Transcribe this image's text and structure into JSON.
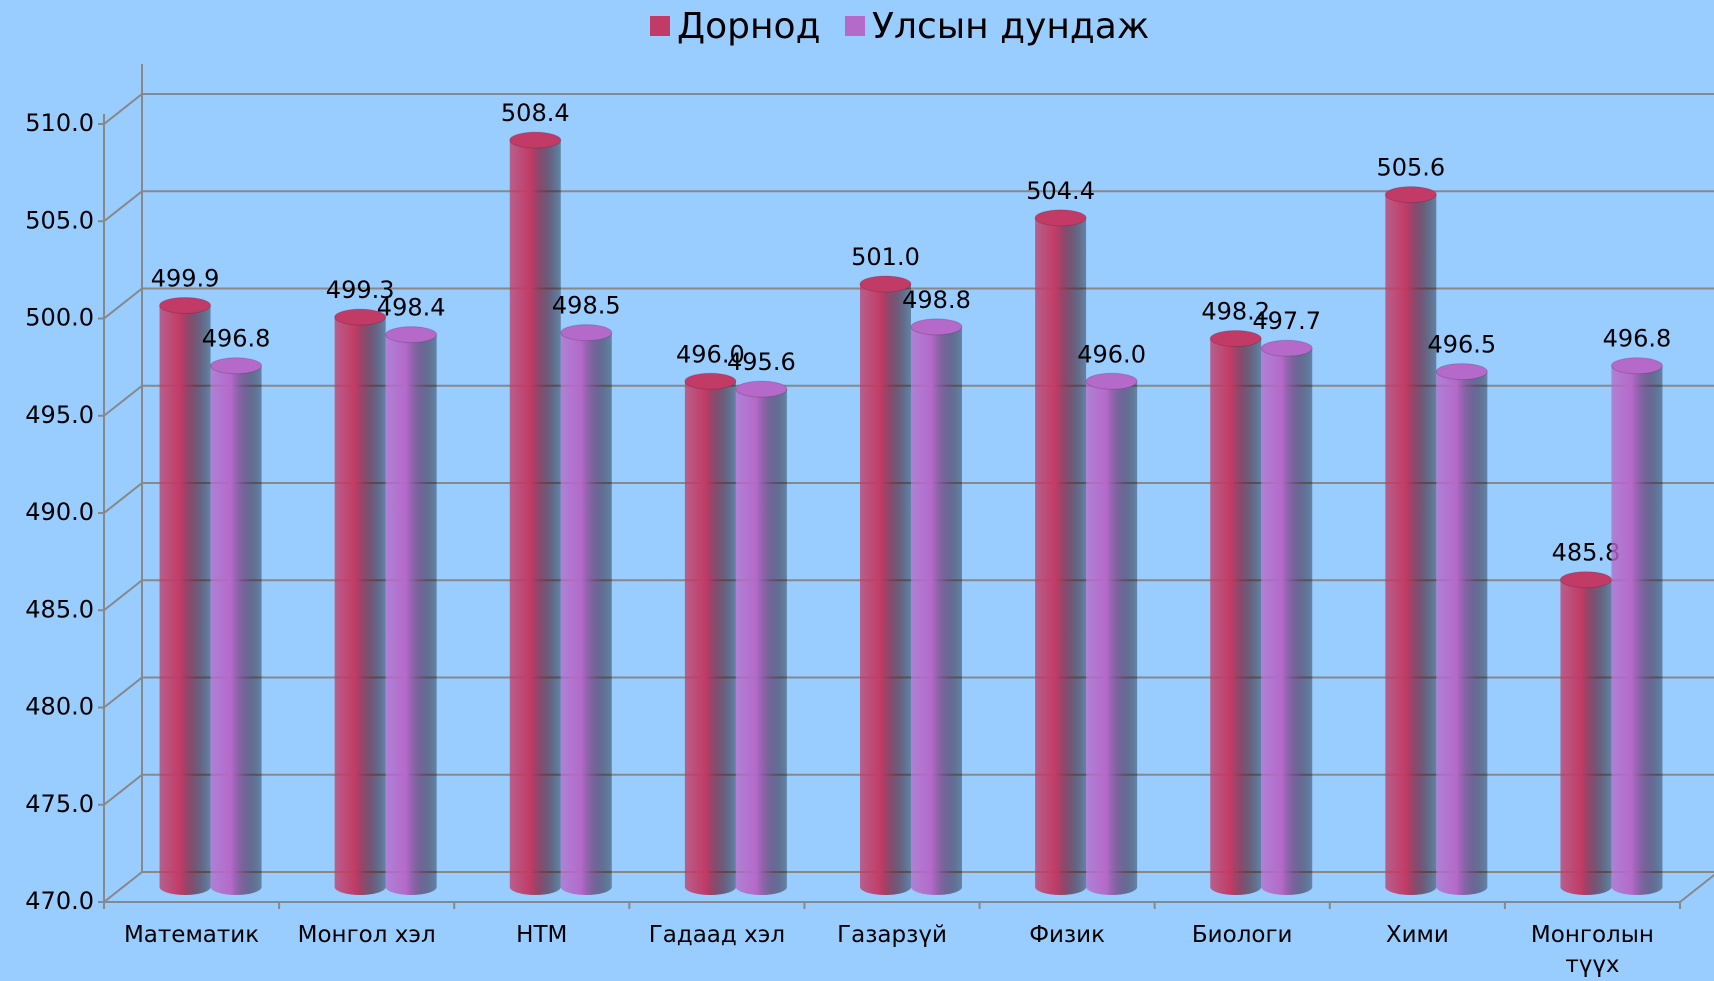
{
  "chart_data": {
    "type": "bar3d",
    "categories": [
      "Математик",
      "Монгол хэл",
      "НТМ",
      "Гадаад хэл",
      "Газарзүй",
      "Физик",
      "Биологи",
      "Хими",
      "Монголын түүх"
    ],
    "series": [
      {
        "name": "Дорнод",
        "color": "#c23b66",
        "values": [
          499.9,
          499.3,
          508.4,
          496.0,
          501.0,
          504.4,
          498.2,
          505.6,
          485.8
        ],
        "value_labels": [
          "499.9",
          "499.3",
          "508.4",
          "496.0",
          "501.0",
          "504.4",
          "498.2",
          "505.6",
          "485.8"
        ]
      },
      {
        "name": "Улсын дундаж",
        "color": "#b569c9",
        "values": [
          496.8,
          498.4,
          498.5,
          495.6,
          498.8,
          496.0,
          497.7,
          496.5,
          496.8
        ],
        "value_labels": [
          "496.8",
          "498.4",
          "498.5",
          "495.6",
          "498.8",
          "496.0",
          "497.7",
          "496.5",
          "496.8"
        ]
      }
    ],
    "ylim": [
      470,
      510
    ],
    "yticks": [
      {
        "value": 470,
        "label": "470.0"
      },
      {
        "value": 475,
        "label": "475.0"
      },
      {
        "value": 480,
        "label": "480.0"
      },
      {
        "value": 485,
        "label": "485.0"
      },
      {
        "value": 490,
        "label": "490.0"
      },
      {
        "value": 495,
        "label": "495.0"
      },
      {
        "value": 500,
        "label": "500.0"
      },
      {
        "value": 505,
        "label": "505.0"
      },
      {
        "value": 510,
        "label": "510.0"
      }
    ],
    "grid": true,
    "legend": "top"
  }
}
